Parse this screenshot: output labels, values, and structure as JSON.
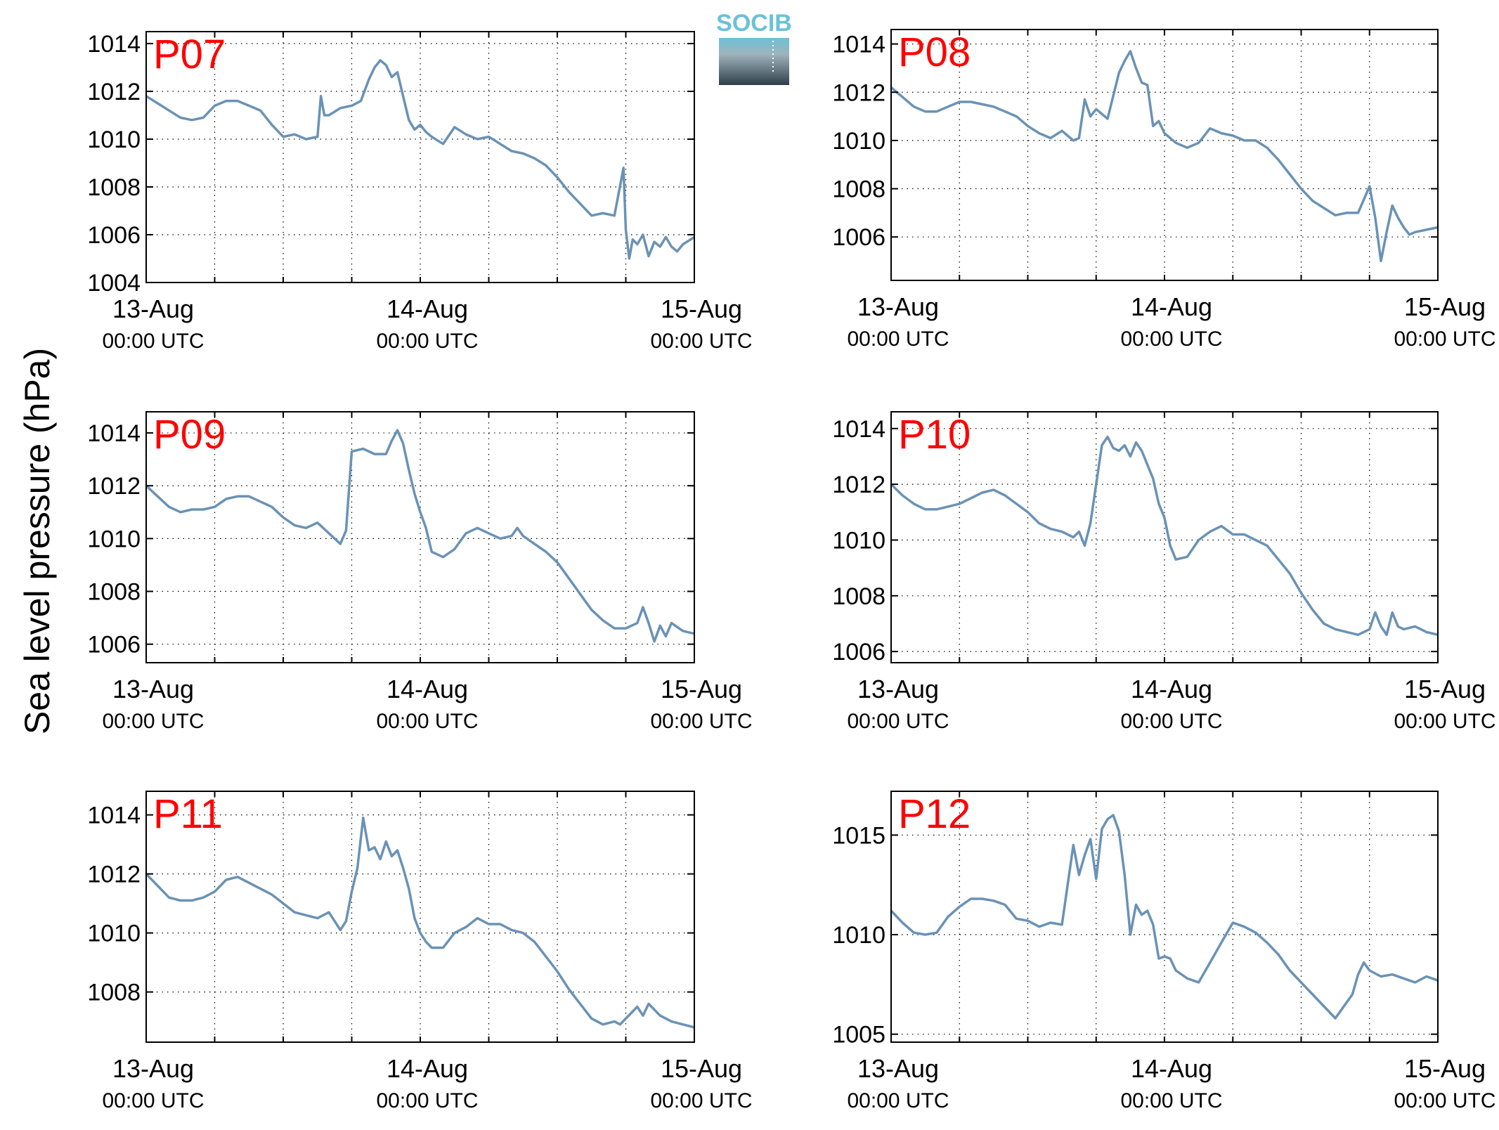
{
  "figure": {
    "ylabel": "Sea level pressure (hPa)",
    "logo_text": "SOCIB",
    "colors": {
      "line": "#6a92b5",
      "title": "#ff0000",
      "logo_top": "#6cc1d6",
      "logo_bottom": "#2f3f4a"
    }
  },
  "chart_data": [
    {
      "type": "line",
      "title": "P07",
      "xlabel": "",
      "ylabel": "Sea level pressure (hPa)",
      "xlim": [
        0,
        48
      ],
      "ylim": [
        1004,
        1014.5
      ],
      "yticks": [
        1004,
        1006,
        1008,
        1010,
        1012,
        1014
      ],
      "xticks": [
        0,
        24,
        48
      ],
      "xtick_labels": [
        "13-Aug",
        "14-Aug",
        "15-Aug"
      ],
      "xtick_sublabels": [
        "00:00 UTC",
        "00:00 UTC",
        "00:00 UTC"
      ],
      "grid": true,
      "series": [
        {
          "x": [
            0,
            1,
            2,
            3,
            4,
            5,
            6,
            7,
            8,
            9,
            10,
            11,
            12,
            13,
            14,
            15,
            15.3,
            15.6,
            16,
            17,
            18,
            18.8,
            19.5,
            20,
            20.5,
            21,
            21.5,
            22,
            22.5,
            23,
            23.5,
            24,
            24.5,
            25,
            26,
            27,
            28,
            29,
            30,
            31,
            32,
            33,
            34,
            35,
            36,
            37,
            38,
            39,
            40,
            41,
            41.8,
            42,
            42.3,
            42.6,
            43,
            43.5,
            44,
            44.5,
            45,
            45.5,
            46,
            46.5,
            47,
            48
          ],
          "y": [
            1011.8,
            1011.5,
            1011.2,
            1010.9,
            1010.8,
            1010.9,
            1011.4,
            1011.6,
            1011.6,
            1011.4,
            1011.2,
            1010.6,
            1010.1,
            1010.2,
            1010.0,
            1010.1,
            1011.8,
            1011.0,
            1011.0,
            1011.3,
            1011.4,
            1011.6,
            1012.5,
            1013.0,
            1013.3,
            1013.1,
            1012.6,
            1012.8,
            1011.8,
            1010.8,
            1010.4,
            1010.6,
            1010.3,
            1010.1,
            1009.8,
            1010.5,
            1010.2,
            1010.0,
            1010.1,
            1009.8,
            1009.5,
            1009.4,
            1009.2,
            1008.9,
            1008.4,
            1007.8,
            1007.3,
            1006.8,
            1006.9,
            1006.8,
            1008.8,
            1006.2,
            1005.0,
            1005.8,
            1005.6,
            1006.0,
            1005.1,
            1005.7,
            1005.5,
            1005.9,
            1005.5,
            1005.3,
            1005.6,
            1005.9
          ]
        }
      ]
    },
    {
      "type": "line",
      "title": "P08",
      "xlabel": "",
      "ylabel": "",
      "xlim": [
        0,
        48
      ],
      "ylim": [
        1004.2,
        1014.6
      ],
      "yticks": [
        1006,
        1008,
        1010,
        1012,
        1014
      ],
      "xticks": [
        0,
        24,
        48
      ],
      "xtick_labels": [
        "13-Aug",
        "14-Aug",
        "15-Aug"
      ],
      "xtick_sublabels": [
        "00:00 UTC",
        "00:00 UTC",
        "00:00 UTC"
      ],
      "grid": true,
      "series": [
        {
          "x": [
            0,
            1,
            2,
            3,
            4,
            5,
            6,
            7,
            8,
            9,
            10,
            11,
            12,
            13,
            14,
            15,
            16,
            16.5,
            17,
            17.5,
            18,
            19,
            20,
            20.5,
            21,
            21.5,
            22,
            22.5,
            23,
            23.5,
            24,
            25,
            26,
            27,
            28,
            29,
            30,
            31,
            32,
            33,
            34,
            35,
            36,
            37,
            38,
            39,
            40,
            41,
            42,
            42.5,
            43,
            43.5,
            44,
            44.5,
            45,
            45.5,
            46,
            47,
            48
          ],
          "y": [
            1012.2,
            1011.8,
            1011.4,
            1011.2,
            1011.2,
            1011.4,
            1011.6,
            1011.6,
            1011.5,
            1011.4,
            1011.2,
            1011.0,
            1010.6,
            1010.3,
            1010.1,
            1010.4,
            1010.0,
            1010.1,
            1011.7,
            1011.0,
            1011.3,
            1010.9,
            1012.8,
            1013.3,
            1013.7,
            1013.0,
            1012.4,
            1012.3,
            1010.6,
            1010.8,
            1010.3,
            1009.9,
            1009.7,
            1009.9,
            1010.5,
            1010.3,
            1010.2,
            1010.0,
            1010.0,
            1009.7,
            1009.2,
            1008.6,
            1008.0,
            1007.5,
            1007.2,
            1006.9,
            1007.0,
            1007.0,
            1008.1,
            1006.8,
            1005.0,
            1006.2,
            1007.3,
            1006.8,
            1006.4,
            1006.1,
            1006.2,
            1006.3,
            1006.4
          ]
        }
      ]
    },
    {
      "type": "line",
      "title": "P09",
      "xlabel": "",
      "ylabel": "",
      "xlim": [
        0,
        48
      ],
      "ylim": [
        1005.3,
        1014.8
      ],
      "yticks": [
        1006,
        1008,
        1010,
        1012,
        1014
      ],
      "xticks": [
        0,
        24,
        48
      ],
      "xtick_labels": [
        "13-Aug",
        "14-Aug",
        "15-Aug"
      ],
      "xtick_sublabels": [
        "00:00 UTC",
        "00:00 UTC",
        "00:00 UTC"
      ],
      "grid": true,
      "series": [
        {
          "x": [
            0,
            1,
            2,
            3,
            4,
            5,
            6,
            7,
            8,
            9,
            10,
            11,
            12,
            13,
            14,
            15,
            16,
            17,
            17.5,
            18,
            19,
            20,
            21,
            21.5,
            22,
            22.5,
            23,
            23.5,
            24,
            24.5,
            25,
            26,
            27,
            28,
            29,
            30,
            31,
            32,
            32.5,
            33,
            34,
            35,
            36,
            37,
            38,
            39,
            40,
            41,
            42,
            43,
            43.5,
            44,
            44.5,
            45,
            45.5,
            46,
            47,
            48
          ],
          "y": [
            1012.0,
            1011.6,
            1011.2,
            1011.0,
            1011.1,
            1011.1,
            1011.2,
            1011.5,
            1011.6,
            1011.6,
            1011.4,
            1011.2,
            1010.8,
            1010.5,
            1010.4,
            1010.6,
            1010.2,
            1009.8,
            1010.3,
            1013.3,
            1013.4,
            1013.2,
            1013.2,
            1013.7,
            1014.1,
            1013.6,
            1012.6,
            1011.7,
            1011.0,
            1010.4,
            1009.5,
            1009.3,
            1009.6,
            1010.2,
            1010.4,
            1010.2,
            1010.0,
            1010.1,
            1010.4,
            1010.1,
            1009.8,
            1009.5,
            1009.1,
            1008.5,
            1007.9,
            1007.3,
            1006.9,
            1006.6,
            1006.6,
            1006.8,
            1007.4,
            1006.8,
            1006.1,
            1006.7,
            1006.3,
            1006.8,
            1006.5,
            1006.4
          ]
        }
      ]
    },
    {
      "type": "line",
      "title": "P10",
      "xlabel": "",
      "ylabel": "",
      "xlim": [
        0,
        48
      ],
      "ylim": [
        1005.6,
        1014.6
      ],
      "yticks": [
        1006,
        1008,
        1010,
        1012,
        1014
      ],
      "xticks": [
        0,
        24,
        48
      ],
      "xtick_labels": [
        "13-Aug",
        "14-Aug",
        "15-Aug"
      ],
      "xtick_sublabels": [
        "00:00 UTC",
        "00:00 UTC",
        "00:00 UTC"
      ],
      "grid": true,
      "series": [
        {
          "x": [
            0,
            1,
            2,
            3,
            4,
            5,
            6,
            7,
            8,
            9,
            10,
            11,
            12,
            13,
            14,
            15,
            16,
            16.5,
            17,
            17.5,
            18,
            18.5,
            19,
            19.5,
            20,
            20.5,
            21,
            21.5,
            22,
            23,
            23.5,
            24,
            24.5,
            25,
            26,
            27,
            28,
            29,
            30,
            31,
            32,
            33,
            34,
            35,
            36,
            37,
            38,
            39,
            40,
            41,
            42,
            42.5,
            43,
            43.5,
            44,
            44.5,
            45,
            46,
            47,
            48
          ],
          "y": [
            1012.0,
            1011.6,
            1011.3,
            1011.1,
            1011.1,
            1011.2,
            1011.3,
            1011.5,
            1011.7,
            1011.8,
            1011.6,
            1011.3,
            1011.0,
            1010.6,
            1010.4,
            1010.3,
            1010.1,
            1010.3,
            1009.8,
            1010.6,
            1012.0,
            1013.4,
            1013.7,
            1013.3,
            1013.2,
            1013.4,
            1013.0,
            1013.5,
            1013.2,
            1012.2,
            1011.3,
            1010.8,
            1009.8,
            1009.3,
            1009.4,
            1010.0,
            1010.3,
            1010.5,
            1010.2,
            1010.2,
            1010.0,
            1009.8,
            1009.3,
            1008.8,
            1008.1,
            1007.5,
            1007.0,
            1006.8,
            1006.7,
            1006.6,
            1006.8,
            1007.4,
            1006.9,
            1006.6,
            1007.4,
            1006.9,
            1006.8,
            1006.9,
            1006.7,
            1006.6
          ]
        }
      ]
    },
    {
      "type": "line",
      "title": "P11",
      "xlabel": "",
      "ylabel": "",
      "xlim": [
        0,
        48
      ],
      "ylim": [
        1006.3,
        1014.8
      ],
      "yticks": [
        1008,
        1010,
        1012,
        1014
      ],
      "xticks": [
        0,
        24,
        48
      ],
      "xtick_labels": [
        "13-Aug",
        "14-Aug",
        "15-Aug"
      ],
      "xtick_sublabels": [
        "00:00 UTC",
        "00:00 UTC",
        "00:00 UTC"
      ],
      "grid": true,
      "series": [
        {
          "x": [
            0,
            1,
            2,
            3,
            4,
            5,
            6,
            7,
            8,
            9,
            10,
            11,
            12,
            13,
            14,
            15,
            16,
            17,
            17.5,
            18,
            18.5,
            19,
            19.5,
            20,
            20.5,
            21,
            21.5,
            22,
            22.5,
            23,
            23.5,
            24,
            24.5,
            25,
            26,
            27,
            28,
            29,
            30,
            31,
            32,
            33,
            34,
            35,
            36,
            37,
            38,
            39,
            40,
            41,
            41.5,
            42,
            43,
            43.5,
            44,
            45,
            46,
            47,
            48
          ],
          "y": [
            1012.0,
            1011.6,
            1011.2,
            1011.1,
            1011.1,
            1011.2,
            1011.4,
            1011.8,
            1011.9,
            1011.7,
            1011.5,
            1011.3,
            1011.0,
            1010.7,
            1010.6,
            1010.5,
            1010.7,
            1010.1,
            1010.4,
            1011.4,
            1012.2,
            1013.9,
            1012.8,
            1012.9,
            1012.5,
            1013.1,
            1012.6,
            1012.8,
            1012.2,
            1011.5,
            1010.5,
            1010.0,
            1009.7,
            1009.5,
            1009.5,
            1010.0,
            1010.2,
            1010.5,
            1010.3,
            1010.3,
            1010.1,
            1010.0,
            1009.7,
            1009.2,
            1008.7,
            1008.1,
            1007.6,
            1007.1,
            1006.9,
            1007.0,
            1006.9,
            1007.1,
            1007.5,
            1007.2,
            1007.6,
            1007.2,
            1007.0,
            1006.9,
            1006.8
          ]
        }
      ]
    },
    {
      "type": "line",
      "title": "P12",
      "xlabel": "",
      "ylabel": "",
      "xlim": [
        0,
        48
      ],
      "ylim": [
        1004.6,
        1017.2
      ],
      "yticks": [
        1005,
        1010,
        1015
      ],
      "xticks": [
        0,
        24,
        48
      ],
      "xtick_labels": [
        "13-Aug",
        "14-Aug",
        "15-Aug"
      ],
      "xtick_sublabels": [
        "00:00 UTC",
        "00:00 UTC",
        "00:00 UTC"
      ],
      "grid": true,
      "series": [
        {
          "x": [
            0,
            1,
            2,
            3,
            4,
            5,
            6,
            7,
            8,
            9,
            10,
            11,
            12,
            13,
            14,
            15,
            16,
            16.5,
            17,
            17.5,
            18,
            18.5,
            19,
            19.5,
            20,
            20.5,
            21,
            21.5,
            22,
            22.5,
            23,
            23.5,
            24,
            24.5,
            25,
            26,
            27,
            28,
            29,
            30,
            31,
            32,
            33,
            34,
            35,
            36,
            37,
            38,
            39,
            40,
            40.5,
            41,
            41.5,
            42,
            43,
            44,
            45,
            46,
            47,
            48
          ],
          "y": [
            1011.2,
            1010.6,
            1010.1,
            1010.0,
            1010.1,
            1010.9,
            1011.4,
            1011.8,
            1011.8,
            1011.7,
            1011.5,
            1010.8,
            1010.7,
            1010.4,
            1010.6,
            1010.5,
            1014.5,
            1013.0,
            1014.0,
            1014.8,
            1012.8,
            1015.3,
            1015.8,
            1016.0,
            1015.2,
            1013.0,
            1010.0,
            1011.5,
            1011.0,
            1011.2,
            1010.5,
            1008.8,
            1008.9,
            1008.8,
            1008.2,
            1007.8,
            1007.6,
            1008.6,
            1009.6,
            1010.6,
            1010.4,
            1010.1,
            1009.6,
            1009.0,
            1008.2,
            1007.6,
            1007.0,
            1006.4,
            1005.8,
            1006.6,
            1007.0,
            1008.0,
            1008.6,
            1008.2,
            1007.9,
            1008.0,
            1007.8,
            1007.6,
            1007.9,
            1007.7
          ]
        }
      ]
    }
  ]
}
